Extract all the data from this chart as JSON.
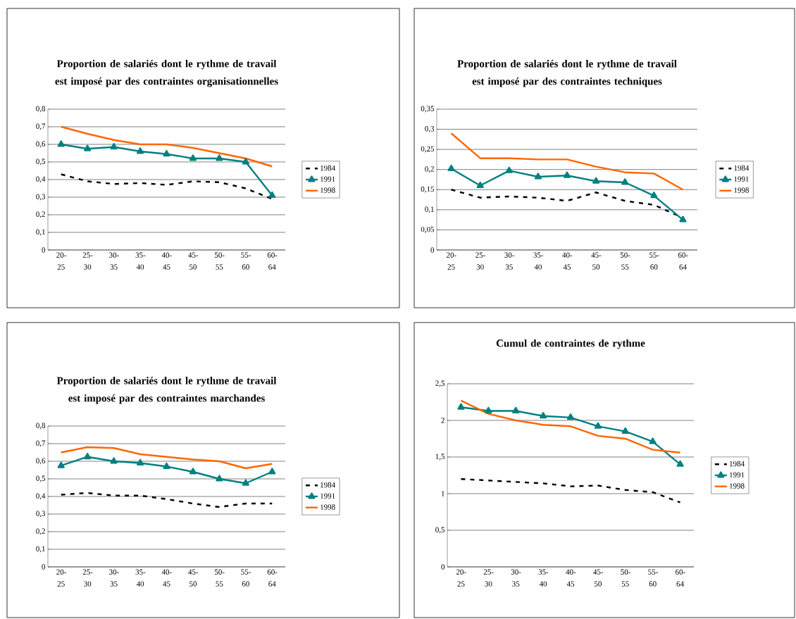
{
  "chart_data": [
    {
      "type": "line",
      "title": "Proportion de salariés dont le rythme de travail est imposé par des contraintes organisationnelles",
      "categories": [
        "20-25",
        "25-30",
        "30-35",
        "35-40",
        "40-45",
        "45-50",
        "50-55",
        "55-60",
        "60-64"
      ],
      "ylim": [
        0,
        0.8
      ],
      "yticks": [
        0,
        {
          "value": 0.1,
          "label": "0,1"
        },
        {
          "value": 0.2,
          "label": "0,2"
        },
        {
          "value": 0.3,
          "label": "0,3"
        },
        {
          "value": 0.4,
          "label": "0,4"
        },
        {
          "value": 0.5,
          "label": "0,5"
        },
        {
          "value": 0.6,
          "label": "0,6"
        },
        {
          "value": 0.7,
          "label": "0,7"
        },
        {
          "value": 0.8,
          "label": "0,8"
        }
      ],
      "grid": "y",
      "legend": "right",
      "series": [
        {
          "name": "1984",
          "color": "#000000",
          "line_style": "dashed",
          "marker": "none",
          "values": [
            0.43,
            0.39,
            0.375,
            0.38,
            0.37,
            0.39,
            0.385,
            0.35,
            0.29
          ]
        },
        {
          "name": "1991",
          "color": "#008080",
          "line_style": "solid",
          "marker": "triangle",
          "values": [
            0.6,
            0.575,
            0.585,
            0.56,
            0.545,
            0.52,
            0.52,
            0.5,
            0.31
          ]
        },
        {
          "name": "1998",
          "color": "#ff6600",
          "line_style": "solid",
          "marker": "none",
          "values": [
            0.7,
            0.66,
            0.625,
            0.6,
            0.6,
            0.58,
            0.55,
            0.52,
            0.475
          ]
        }
      ]
    },
    {
      "type": "line",
      "title": "Proportion de salariés dont le rythme de travail est imposé par des contraintes techniques",
      "categories": [
        "20-25",
        "25-30",
        "30-35",
        "35-40",
        "40-45",
        "45-50",
        "50-55",
        "55-60",
        "60-64"
      ],
      "ylim": [
        0,
        0.35
      ],
      "yticks": [
        0,
        {
          "value": 0.05,
          "label": "0,05"
        },
        {
          "value": 0.1,
          "label": "0,1"
        },
        {
          "value": 0.15,
          "label": "0,15"
        },
        {
          "value": 0.2,
          "label": "0,2"
        },
        {
          "value": 0.25,
          "label": "0,25"
        },
        {
          "value": 0.3,
          "label": "0,3"
        },
        {
          "value": 0.35,
          "label": "0,35"
        }
      ],
      "grid": "y",
      "legend": "right",
      "series": [
        {
          "name": "1984",
          "color": "#000000",
          "line_style": "dashed",
          "marker": "none",
          "values": [
            0.15,
            0.13,
            0.133,
            0.13,
            0.122,
            0.143,
            0.122,
            0.112,
            0.08
          ]
        },
        {
          "name": "1991",
          "color": "#008080",
          "line_style": "solid",
          "marker": "triangle",
          "values": [
            0.202,
            0.16,
            0.197,
            0.182,
            0.185,
            0.171,
            0.168,
            0.135,
            0.075
          ]
        },
        {
          "name": "1998",
          "color": "#ff6600",
          "line_style": "solid",
          "marker": "none",
          "values": [
            0.29,
            0.228,
            0.228,
            0.225,
            0.225,
            0.207,
            0.193,
            0.19,
            0.15
          ]
        }
      ]
    },
    {
      "type": "line",
      "title": "Proportion de salariés dont le rythme de travail est imposé par des contraintes marchandes",
      "categories": [
        "20-25",
        "25-30",
        "30-35",
        "35-40",
        "40-45",
        "45-50",
        "50-55",
        "55-60",
        "60-64"
      ],
      "ylim": [
        0,
        0.8
      ],
      "yticks": [
        0,
        {
          "value": 0.1,
          "label": "0,1"
        },
        {
          "value": 0.2,
          "label": "0,2"
        },
        {
          "value": 0.3,
          "label": "0,3"
        },
        {
          "value": 0.4,
          "label": "0,4"
        },
        {
          "value": 0.5,
          "label": "0,5"
        },
        {
          "value": 0.6,
          "label": "0,6"
        },
        {
          "value": 0.7,
          "label": "0,7"
        },
        {
          "value": 0.8,
          "label": "0,8"
        }
      ],
      "grid": "y",
      "legend": "right",
      "series": [
        {
          "name": "1984",
          "color": "#000000",
          "line_style": "dashed",
          "marker": "none",
          "values": [
            0.41,
            0.42,
            0.405,
            0.405,
            0.385,
            0.36,
            0.34,
            0.36,
            0.36
          ]
        },
        {
          "name": "1991",
          "color": "#008080",
          "line_style": "solid",
          "marker": "triangle",
          "values": [
            0.575,
            0.625,
            0.6,
            0.59,
            0.57,
            0.54,
            0.5,
            0.475,
            0.54
          ]
        },
        {
          "name": "1998",
          "color": "#ff6600",
          "line_style": "solid",
          "marker": "none",
          "values": [
            0.65,
            0.68,
            0.675,
            0.64,
            0.625,
            0.61,
            0.6,
            0.56,
            0.585
          ]
        }
      ]
    },
    {
      "type": "line",
      "title": "Cumul de contraintes de rythme",
      "categories": [
        "20-25",
        "25-30",
        "30-35",
        "35-40",
        "40-45",
        "45-50",
        "50-55",
        "55-60",
        "60-64"
      ],
      "ylim": [
        0,
        2.5
      ],
      "yticks": [
        0,
        {
          "value": 0.5,
          "label": "0,5"
        },
        1,
        {
          "value": 1.5,
          "label": "1,5"
        },
        2,
        {
          "value": 2.5,
          "label": "2,5"
        }
      ],
      "grid": "y",
      "legend": "right",
      "series": [
        {
          "name": "1984",
          "color": "#000000",
          "line_style": "dashed",
          "marker": "none",
          "values": [
            1.2,
            1.18,
            1.16,
            1.14,
            1.1,
            1.11,
            1.05,
            1.02,
            0.88
          ]
        },
        {
          "name": "1991",
          "color": "#008080",
          "line_style": "solid",
          "marker": "triangle",
          "values": [
            2.18,
            2.13,
            2.13,
            2.06,
            2.04,
            1.92,
            1.85,
            1.71,
            1.4
          ]
        },
        {
          "name": "1998",
          "color": "#ff6600",
          "line_style": "solid",
          "marker": "none",
          "values": [
            2.27,
            2.09,
            2.0,
            1.94,
            1.92,
            1.79,
            1.75,
            1.6,
            1.56
          ]
        }
      ]
    }
  ]
}
